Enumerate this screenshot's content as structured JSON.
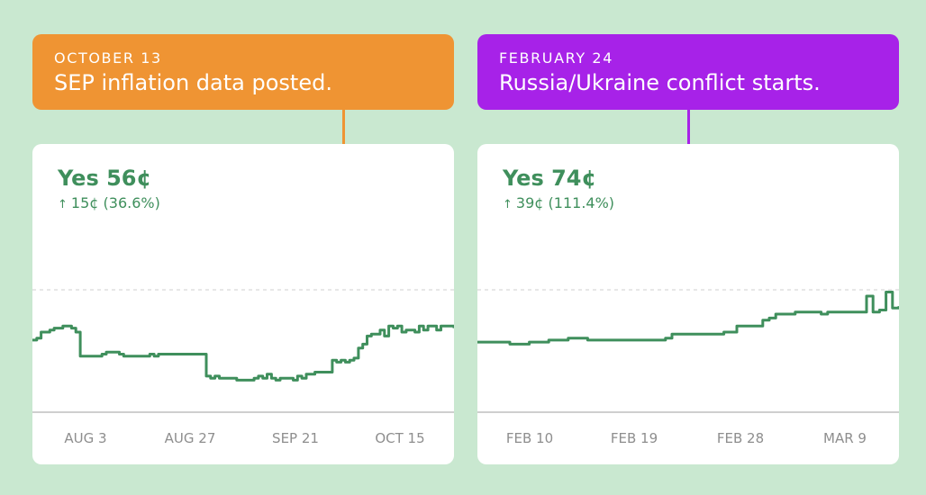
{
  "colors": {
    "background": "#c9e8d0",
    "line": "#3f8f5c",
    "callout_left": "#ef9433",
    "callout_right": "#a722e8",
    "axis": "#cfcfcf",
    "tick_label": "#8e8e8e",
    "reference_line": "#cfcfcf"
  },
  "panels": [
    {
      "callout": {
        "date": "OCTOBER 13",
        "event": "SEP inflation data posted."
      },
      "price_label": "Yes 56¢",
      "change_label": "15¢ (36.6%)",
      "change_icon": "arrow-up-icon"
    },
    {
      "callout": {
        "date": "FEBRUARY 24",
        "event": "Russia/Ukraine conflict starts."
      },
      "price_label": "Yes 74¢",
      "change_label": "39¢ (111.4%)",
      "change_icon": "arrow-up-icon"
    }
  ],
  "chart_data": [
    {
      "type": "line",
      "title": "",
      "x_labels": [
        "AUG 3",
        "AUG 27",
        "SEP 21",
        "OCT 15"
      ],
      "series": [
        {
          "values": [
            36,
            37,
            40,
            40,
            41,
            42,
            42,
            43,
            43,
            42,
            40,
            28,
            28,
            28,
            28,
            28,
            29,
            30,
            30,
            30,
            29,
            28,
            28,
            28,
            28,
            28,
            28,
            29,
            28,
            29,
            29,
            29,
            29,
            29,
            29,
            29,
            29,
            29,
            29,
            29,
            18,
            17,
            18,
            17,
            17,
            17,
            17,
            16,
            16,
            16,
            16,
            17,
            18,
            17,
            19,
            17,
            16,
            17,
            17,
            17,
            16,
            18,
            17,
            19,
            19,
            20,
            20,
            20,
            20,
            26,
            25,
            26,
            25,
            26,
            27,
            32,
            34,
            38,
            39,
            39,
            41,
            38,
            43,
            42,
            43,
            40,
            41,
            41,
            40,
            43,
            41,
            43,
            43,
            41,
            43,
            43,
            43,
            42
          ],
          "current": 56
        }
      ],
      "reference_line": true,
      "event_x_label": "OCTOBER 13"
    },
    {
      "type": "line",
      "title": "",
      "x_labels": [
        "FEB 10",
        "FEB 19",
        "FEB 28",
        "MAR 9"
      ],
      "series": [
        {
          "values": [
            35,
            35,
            35,
            35,
            35,
            34,
            34,
            34,
            35,
            35,
            35,
            36,
            36,
            36,
            37,
            37,
            37,
            36,
            36,
            36,
            36,
            36,
            36,
            36,
            36,
            36,
            36,
            36,
            36,
            37,
            39,
            39,
            39,
            39,
            39,
            39,
            39,
            39,
            40,
            40,
            43,
            43,
            43,
            43,
            46,
            47,
            49,
            49,
            49,
            50,
            50,
            50,
            50,
            49,
            50,
            50,
            50,
            50,
            50,
            50,
            58,
            50,
            51,
            60,
            52,
            53
          ],
          "current": 74
        }
      ],
      "reference_line": true,
      "event_x_label": "FEBRUARY 24"
    }
  ]
}
